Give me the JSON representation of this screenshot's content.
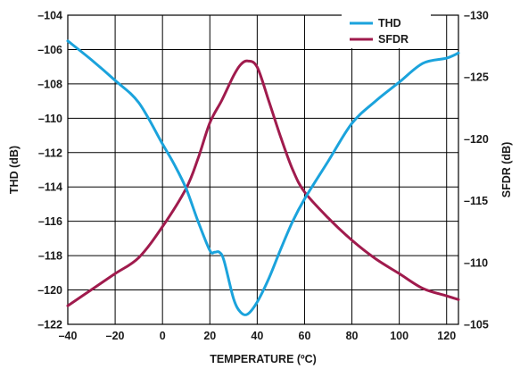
{
  "chart_data": {
    "type": "line",
    "title": "",
    "xlabel": "TEMPERATURE (ºC)",
    "ylabel_left": "THD (dB)",
    "ylabel_right": "SFDR (dB)",
    "xlim": [
      -40,
      125
    ],
    "ylim_left": [
      -122,
      -104
    ],
    "ylim_right": [
      -105,
      -130
    ],
    "x_ticks": [
      -40,
      -20,
      0,
      20,
      40,
      60,
      80,
      100,
      120
    ],
    "x_tick_labels": [
      "–40",
      "–20",
      "0",
      "20",
      "40",
      "60",
      "80",
      "100",
      "120"
    ],
    "y_left_ticks": [
      -104,
      -106,
      -108,
      -110,
      -112,
      -114,
      -116,
      -118,
      -120,
      -122
    ],
    "y_left_tick_labels": [
      "–104",
      "–106",
      "–108",
      "–110",
      "–112",
      "–114",
      "–116",
      "–118",
      "–120",
      "–122"
    ],
    "y_right_ticks": [
      -130,
      -125,
      -120,
      -115,
      -110,
      -105
    ],
    "y_right_tick_labels": [
      "–130",
      "–125",
      "–120",
      "–115",
      "–110",
      "–105"
    ],
    "grid": true,
    "legend_position": "top-right",
    "series": [
      {
        "name": "THD",
        "axis": "left",
        "color": "#1ba3dc",
        "x": [
          -40,
          -30,
          -20,
          -10,
          0,
          5,
          10,
          15,
          20,
          22,
          24,
          26,
          30,
          33,
          36,
          40,
          45,
          50,
          55,
          60,
          70,
          80,
          90,
          100,
          110,
          120,
          125
        ],
        "y": [
          -105.5,
          -106.6,
          -107.8,
          -109.1,
          -111.5,
          -112.7,
          -114.1,
          -116.0,
          -117.7,
          -117.8,
          -117.8,
          -118.3,
          -120.5,
          -121.3,
          -121.4,
          -120.7,
          -119.3,
          -117.6,
          -116.0,
          -114.7,
          -112.5,
          -110.3,
          -109.0,
          -107.9,
          -106.8,
          -106.5,
          -106.2
        ]
      },
      {
        "name": "SFDR",
        "axis": "right",
        "color": "#a01b4d",
        "x": [
          -40,
          -30,
          -20,
          -10,
          0,
          10,
          15,
          20,
          25,
          30,
          33,
          36,
          40,
          45,
          50,
          55,
          60,
          70,
          80,
          90,
          100,
          110,
          120,
          125
        ],
        "y": [
          -106.5,
          -107.8,
          -109.1,
          -110.4,
          -112.9,
          -116.0,
          -118.4,
          -121.3,
          -123.1,
          -125.1,
          -126.0,
          -126.3,
          -125.8,
          -123.0,
          -120.1,
          -117.5,
          -115.7,
          -113.6,
          -111.8,
          -110.3,
          -109.1,
          -107.9,
          -107.3,
          -107.0
        ]
      }
    ]
  }
}
